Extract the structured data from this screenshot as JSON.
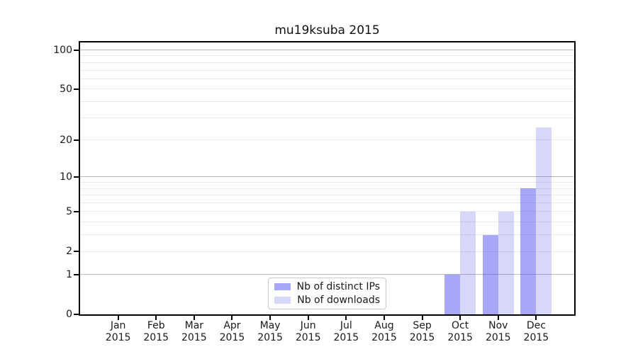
{
  "chart": {
    "title": "mu19ksuba 2015"
  },
  "chart_data": {
    "type": "bar",
    "title": "mu19ksuba 2015",
    "categories": [
      "Jan 2015",
      "Feb 2015",
      "Mar 2015",
      "Apr 2015",
      "May 2015",
      "Jun 2015",
      "Jul 2015",
      "Aug 2015",
      "Sep 2015",
      "Oct 2015",
      "Nov 2015",
      "Dec 2015"
    ],
    "series": [
      {
        "name": "Nb of distinct IPs",
        "color": "rgba(68,68,238,0.47)",
        "values": [
          0,
          0,
          0,
          0,
          0,
          0,
          0,
          0,
          0,
          1,
          3,
          8
        ]
      },
      {
        "name": "Nb of downloads",
        "color": "rgba(68,68,238,0.21)",
        "values": [
          0,
          0,
          0,
          0,
          0,
          0,
          0,
          0,
          0,
          5,
          5,
          25
        ]
      }
    ],
    "xlabel": "",
    "ylabel": "",
    "yscale": "log1p",
    "ylim": [
      0,
      114
    ],
    "yticks": [
      0,
      1,
      2,
      5,
      10,
      20,
      50,
      100
    ],
    "major_gridlines": [
      1,
      10,
      100
    ],
    "minor_gridlines": [
      2,
      3,
      4,
      5,
      6,
      7,
      8,
      9,
      20,
      30,
      40,
      50,
      60,
      70,
      80,
      90
    ],
    "grid": true,
    "legend": {
      "position": "lower center",
      "entries": [
        "Nb of distinct IPs",
        "Nb of downloads"
      ]
    },
    "colors": {
      "major_grid": "#b9b9b9",
      "minor_grid": "#e9e9e9",
      "spine": "#000000",
      "background": "#ffffff",
      "text": "#1a1a1a"
    }
  }
}
